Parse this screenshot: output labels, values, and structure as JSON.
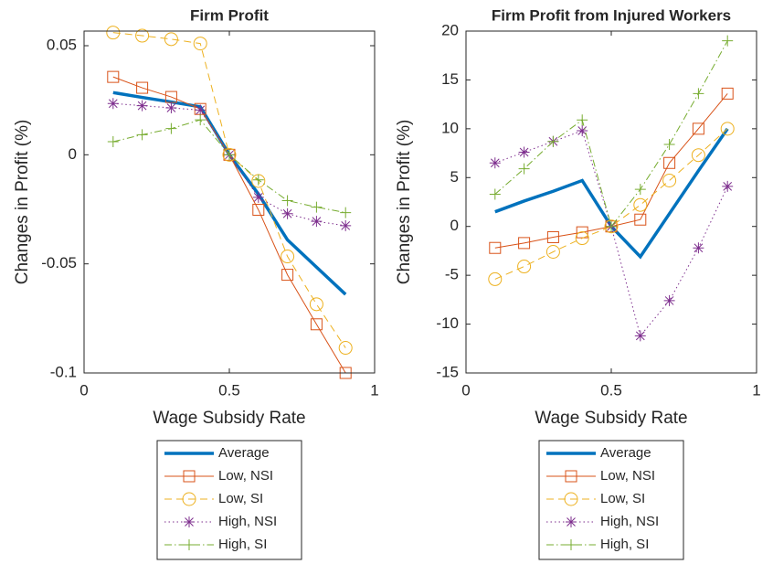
{
  "chart_data": [
    {
      "type": "line",
      "title": "Firm Profit",
      "xlabel": "Wage Subsidy Rate",
      "ylabel": "Changes in Profit (%)",
      "x": [
        0.1,
        0.2,
        0.3,
        0.4,
        0.5,
        0.6,
        0.7,
        0.8,
        0.9
      ],
      "xlim": [
        0,
        1
      ],
      "xticks": [
        0,
        0.5,
        1
      ],
      "ylim": [
        -0.1,
        0.0567
      ],
      "yticks": [
        -0.1,
        -0.05,
        0,
        0.05
      ],
      "legend": "bottom",
      "series": [
        {
          "name": "Average",
          "color": "#0072bd",
          "style": "solid",
          "marker": "none",
          "width": 3.5,
          "values": [
            0.0285,
            0.0263,
            0.0242,
            0.022,
            0,
            -0.018,
            -0.039,
            -0.0515,
            -0.064
          ]
        },
        {
          "name": "Low, NSI",
          "color": "#d95319",
          "style": "solid",
          "marker": "square",
          "width": 1,
          "values": [
            0.0357,
            0.0307,
            0.0265,
            0.021,
            0,
            -0.0252,
            -0.055,
            -0.0777,
            -0.1
          ]
        },
        {
          "name": "Low, SI",
          "color": "#edb120",
          "style": "dashed",
          "marker": "circle",
          "width": 1,
          "values": [
            0.056,
            0.0546,
            0.053,
            0.051,
            0,
            -0.012,
            -0.0466,
            -0.0685,
            -0.0885
          ]
        },
        {
          "name": "High, NSI",
          "color": "#7e2f8e",
          "style": "dotted",
          "marker": "asterisk",
          "width": 1,
          "values": [
            0.0235,
            0.0225,
            0.0215,
            0.0205,
            0,
            -0.0195,
            -0.027,
            -0.0305,
            -0.0325
          ]
        },
        {
          "name": "High, SI",
          "color": "#77ac30",
          "style": "dashdot",
          "marker": "plus",
          "width": 1,
          "values": [
            0.006,
            0.0092,
            0.012,
            0.016,
            0,
            -0.0115,
            -0.021,
            -0.024,
            -0.0265
          ]
        }
      ]
    },
    {
      "type": "line",
      "title": "Firm Profit from Injured Workers",
      "xlabel": "Wage Subsidy Rate",
      "ylabel": "Changes in Profit (%)",
      "x": [
        0.1,
        0.2,
        0.3,
        0.4,
        0.5,
        0.6,
        0.7,
        0.8,
        0.9
      ],
      "xlim": [
        0,
        1
      ],
      "xticks": [
        0,
        0.5,
        1
      ],
      "ylim": [
        -15,
        20
      ],
      "yticks": [
        -15,
        -10,
        -5,
        0,
        5,
        10,
        15,
        20
      ],
      "legend": "bottom",
      "series": [
        {
          "name": "Average",
          "color": "#0072bd",
          "style": "solid",
          "marker": "none",
          "width": 3.5,
          "values": [
            1.5,
            2.6,
            3.6,
            4.7,
            0,
            -3.1,
            1.3,
            5.7,
            10.0
          ]
        },
        {
          "name": "Low, NSI",
          "color": "#d95319",
          "style": "solid",
          "marker": "square",
          "width": 1,
          "values": [
            -2.2,
            -1.7,
            -1.1,
            -0.6,
            0,
            0.7,
            6.5,
            10.0,
            13.6
          ]
        },
        {
          "name": "Low, SI",
          "color": "#edb120",
          "style": "dashed",
          "marker": "circle",
          "width": 1,
          "values": [
            -5.4,
            -4.1,
            -2.6,
            -1.2,
            0,
            2.2,
            4.7,
            7.3,
            10.0
          ]
        },
        {
          "name": "High, NSI",
          "color": "#7e2f8e",
          "style": "dotted",
          "marker": "asterisk",
          "width": 1,
          "values": [
            6.5,
            7.6,
            8.7,
            9.8,
            0,
            -11.2,
            -7.6,
            -2.2,
            4.1
          ]
        },
        {
          "name": "High, SI",
          "color": "#77ac30",
          "style": "dashdot",
          "marker": "plus",
          "width": 1,
          "values": [
            3.3,
            5.9,
            8.7,
            10.9,
            0,
            3.8,
            8.4,
            13.6,
            19.0
          ]
        }
      ]
    }
  ]
}
